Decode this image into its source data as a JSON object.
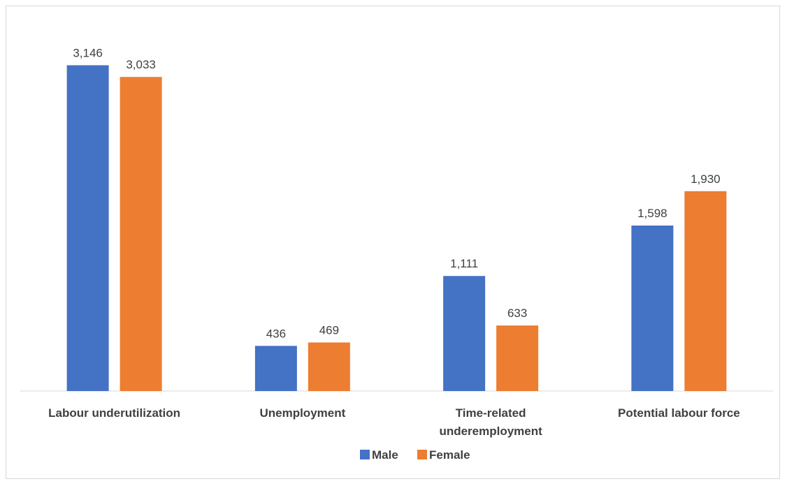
{
  "chart_data": {
    "type": "bar",
    "title": "",
    "xlabel": "",
    "ylabel": "",
    "categories": [
      [
        "Labour underutilization"
      ],
      [
        "Unemployment"
      ],
      [
        "Time-related",
        "underemployment"
      ],
      [
        "Potential labour force"
      ]
    ],
    "series": [
      {
        "name": "Male",
        "color": "#4472C4",
        "values": [
          3146,
          436,
          1111,
          1598
        ],
        "labels": [
          "3,146",
          "436",
          "1,111",
          "1,598"
        ]
      },
      {
        "name": "Female",
        "color": "#ED7D31",
        "values": [
          3033,
          469,
          633,
          1930
        ],
        "labels": [
          "3,033",
          "469",
          "633",
          "1,930"
        ]
      }
    ],
    "ylim": [
      0,
      3300
    ],
    "grid": false,
    "legend": "bottom-center",
    "axis_color": "#d9d9d9"
  }
}
